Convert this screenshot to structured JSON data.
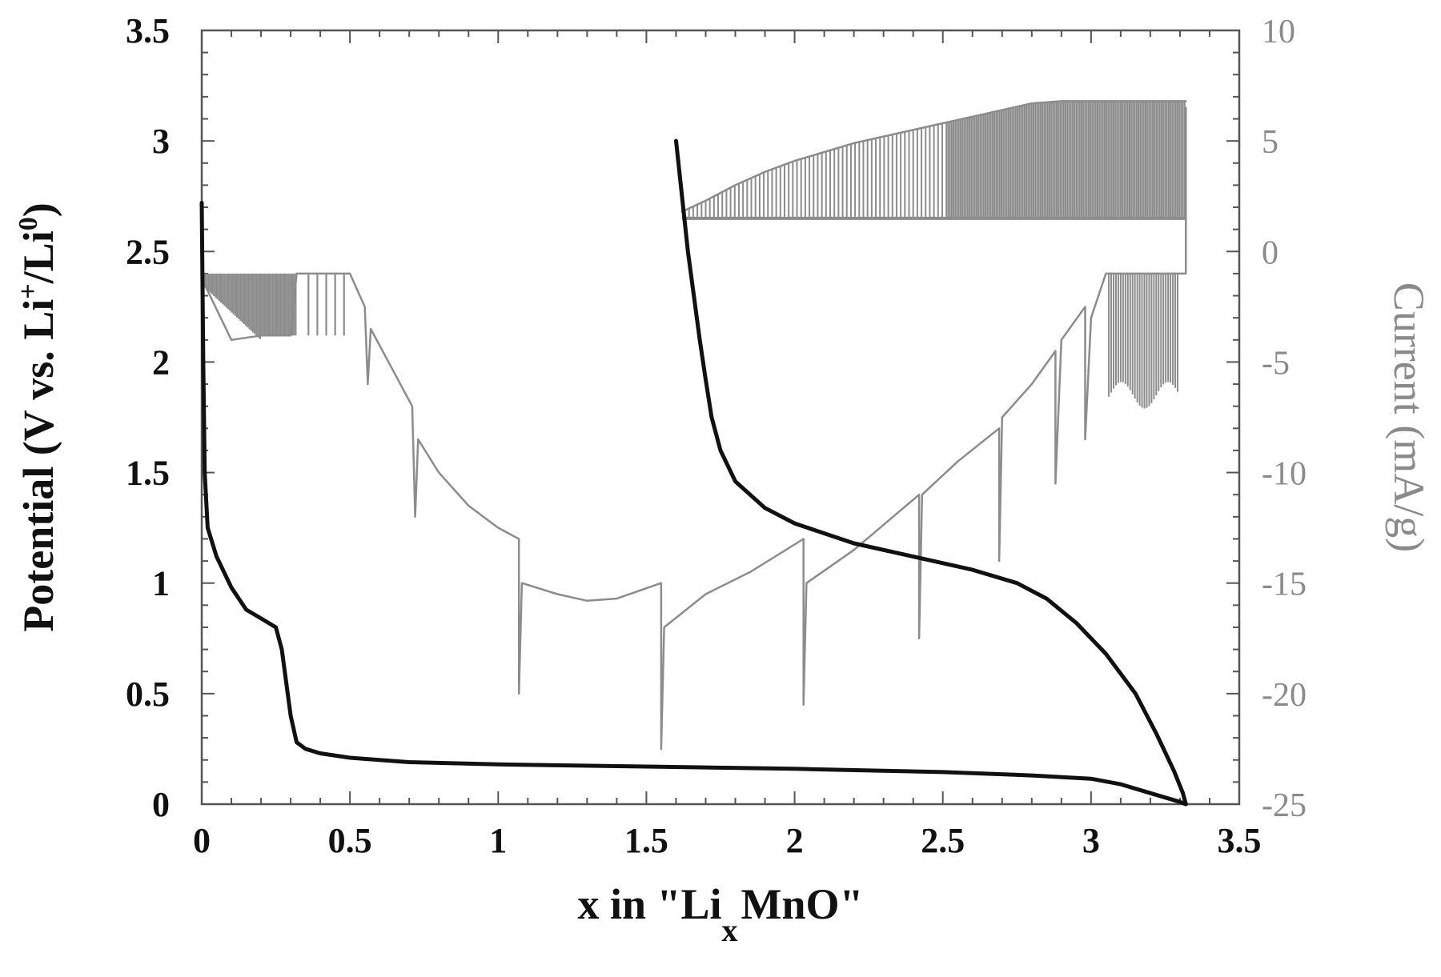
{
  "chart_data": {
    "type": "line",
    "title": "",
    "xlabel": {
      "main": "x in \"Li",
      "sub": "x",
      "rest": "MnO\""
    },
    "ylabel_left": {
      "main": "Potential (V vs. Li",
      "sup1": "+",
      "mid": "/Li",
      "sup2": "0",
      "end": ")"
    },
    "ylabel_right": "Current (mA/g)",
    "xlim": [
      0,
      3.5
    ],
    "ylim_left": [
      0,
      3.5
    ],
    "ylim_right": [
      -25,
      10
    ],
    "x_ticks": [
      "0",
      "0.5",
      "1",
      "1.5",
      "2",
      "2.5",
      "3",
      "3.5"
    ],
    "y_left_ticks": [
      "0",
      "0.5",
      "1",
      "1.5",
      "2",
      "2.5",
      "3",
      "3.5"
    ],
    "y_right_ticks": [
      "-25",
      "-20",
      "-15",
      "-10",
      "-5",
      "0",
      "5",
      "10"
    ],
    "grid": false,
    "colors": {
      "potential": "#111111",
      "current": "#8c8c8c",
      "axes": "#555555"
    },
    "series": [
      {
        "axis": "left",
        "x": [
          0.0,
          0.005,
          0.01,
          0.02,
          0.05,
          0.1,
          0.15,
          0.2,
          0.25,
          0.27,
          0.29,
          0.3,
          0.32,
          0.35,
          0.4,
          0.5,
          0.7,
          1.0,
          1.5,
          2.0,
          2.5,
          2.8,
          3.0,
          3.1,
          3.2,
          3.3,
          3.32
        ],
        "y": [
          2.72,
          2.0,
          1.5,
          1.25,
          1.12,
          0.98,
          0.88,
          0.84,
          0.8,
          0.7,
          0.5,
          0.4,
          0.28,
          0.25,
          0.23,
          0.21,
          0.19,
          0.18,
          0.17,
          0.16,
          0.145,
          0.13,
          0.115,
          0.09,
          0.05,
          0.01,
          0.0
        ]
      },
      {
        "axis": "left",
        "x": [
          3.32,
          3.31,
          3.28,
          3.22,
          3.15,
          3.05,
          2.95,
          2.85,
          2.75,
          2.6,
          2.4,
          2.2,
          2.0,
          1.9,
          1.8,
          1.75,
          1.72,
          1.7,
          1.68,
          1.66,
          1.64,
          1.62,
          1.6
        ],
        "y": [
          0.0,
          0.05,
          0.15,
          0.32,
          0.5,
          0.68,
          0.82,
          0.93,
          1.0,
          1.06,
          1.12,
          1.18,
          1.27,
          1.34,
          1.46,
          1.6,
          1.75,
          1.92,
          2.1,
          2.3,
          2.5,
          2.75,
          3.0
        ]
      },
      {
        "axis": "right",
        "x": [
          0.0,
          0.01,
          0.1,
          0.2,
          0.3,
          0.32,
          0.35,
          0.4,
          0.45,
          0.5,
          0.55,
          0.56,
          0.57,
          0.65,
          0.71,
          0.72,
          0.73,
          0.8,
          0.9,
          1.0,
          1.07,
          1.07,
          1.08,
          1.2,
          1.3,
          1.4,
          1.55,
          1.55,
          1.56,
          1.7,
          1.85,
          2.03,
          2.03,
          2.04,
          2.2,
          2.42,
          2.42,
          2.43,
          2.55,
          2.69,
          2.69,
          2.7,
          2.8,
          2.88,
          2.88,
          2.9,
          2.98,
          2.98,
          3.0,
          3.05,
          3.32,
          3.32
        ],
        "y": [
          -1.0,
          -1.5,
          -4.0,
          -3.8,
          -3.8,
          -1.0,
          -1.0,
          -1.0,
          -1.0,
          -1.0,
          -2.5,
          -6.0,
          -3.5,
          -5.5,
          -7.0,
          -12.0,
          -8.5,
          -10.0,
          -11.5,
          -12.5,
          -13.0,
          -20.0,
          -15.0,
          -15.5,
          -15.8,
          -15.7,
          -15.0,
          -22.5,
          -17.0,
          -15.5,
          -14.5,
          -13.0,
          -20.5,
          -15.0,
          -13.5,
          -11.0,
          -17.5,
          -11.0,
          -9.5,
          -8.0,
          -14.0,
          -7.5,
          -6.0,
          -4.5,
          -10.5,
          -4.0,
          -2.5,
          -8.5,
          -3.0,
          -1.0,
          -1.0,
          6.5
        ]
      },
      {
        "axis": "right",
        "x": [
          1.62,
          1.7,
          1.8,
          1.9,
          2.0,
          2.1,
          2.2,
          2.3,
          2.4,
          2.5,
          2.6,
          2.7,
          2.8,
          2.9,
          3.0,
          3.1,
          3.2,
          3.32
        ],
        "y": [
          1.8,
          2.3,
          3.0,
          3.6,
          4.1,
          4.5,
          4.9,
          5.2,
          5.5,
          5.8,
          6.1,
          6.4,
          6.7,
          6.8,
          6.8,
          6.8,
          6.8,
          6.8
        ]
      }
    ]
  }
}
